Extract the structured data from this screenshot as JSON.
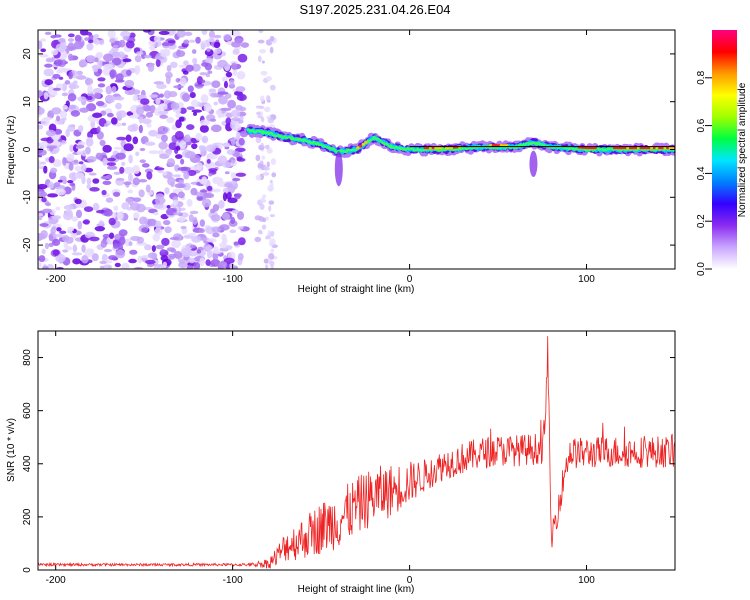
{
  "title": "S197.2025.231.04.26.E04",
  "chart_data": [
    {
      "type": "heatmap",
      "title": "S197.2025.231.04.26.E04",
      "xlabel": "Height of straight line (km)",
      "ylabel": "Frequency (Hz)",
      "xlim": [
        -210,
        150
      ],
      "ylim": [
        -25,
        25
      ],
      "xticks": [
        -200,
        -100,
        0,
        100
      ],
      "yticks": [
        -20,
        -10,
        0,
        10,
        20
      ],
      "colorbar": {
        "label": "Normalized spectral amplitude",
        "range": [
          0.0,
          1.0
        ],
        "ticks": [
          0.0,
          0.2,
          0.4,
          0.6,
          0.8
        ],
        "tick_labels": [
          "0.0",
          "0.2",
          "0.4",
          "0.6",
          "0.8"
        ],
        "colormap": [
          "#ffffff",
          "#c9a6ff",
          "#8b2cf0",
          "#3300ff",
          "#0080ff",
          "#00e5ff",
          "#00ff40",
          "#a0ff00",
          "#ffff00",
          "#ff9900",
          "#ff0000",
          "#ff0080"
        ]
      },
      "ridge": {
        "description_values": "dominant frequency near 0 Hz for heights above -95 km",
        "x": [
          -92,
          -80,
          -70,
          -60,
          -50,
          -40,
          -30,
          -20,
          -10,
          0,
          20,
          40,
          60,
          70,
          80,
          100,
          120,
          150
        ],
        "y": [
          4.0,
          3.5,
          2.5,
          2.0,
          1.0,
          -0.5,
          0.0,
          2.5,
          0.5,
          0.0,
          0.0,
          0.5,
          0.5,
          1.5,
          0.5,
          0.0,
          0.0,
          0.0
        ]
      },
      "noise_region_x": [
        -210,
        -75
      ]
    },
    {
      "type": "line",
      "title": "",
      "xlabel": "Height of straight line (km)",
      "ylabel": "SNR (10 * v/v)",
      "xlim": [
        -210,
        150
      ],
      "ylim": [
        0,
        900
      ],
      "xticks": [
        -200,
        -100,
        0,
        100
      ],
      "yticks": [
        0,
        200,
        400,
        600,
        800
      ],
      "series": [
        {
          "name": "SNR",
          "color": "#ee2222",
          "x": [
            -210,
            -180,
            -150,
            -120,
            -90,
            -80,
            -75,
            -70,
            -60,
            -50,
            -40,
            -30,
            -20,
            -10,
            0,
            10,
            20,
            30,
            40,
            50,
            60,
            70,
            75,
            77,
            78,
            80,
            90,
            100,
            110,
            120,
            130,
            140,
            150
          ],
          "y": [
            20,
            20,
            20,
            20,
            20,
            25,
            50,
            90,
            120,
            160,
            190,
            240,
            280,
            300,
            330,
            360,
            400,
            420,
            440,
            450,
            450,
            455,
            460,
            560,
            880,
            110,
            440,
            440,
            445,
            445,
            445,
            445,
            445
          ],
          "noise_amplitude": [
            5,
            5,
            5,
            5,
            5,
            20,
            40,
            60,
            80,
            100,
            110,
            110,
            110,
            100,
            80,
            60,
            60,
            60,
            60,
            60,
            60,
            60,
            60,
            60,
            60,
            60,
            60,
            60,
            60,
            60,
            60,
            60,
            60
          ]
        }
      ]
    }
  ]
}
